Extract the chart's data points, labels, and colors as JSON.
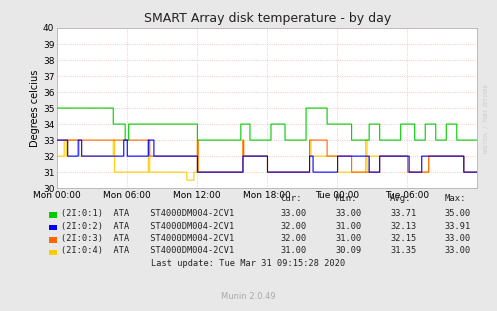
{
  "title": "SMART Array disk temperature - by day",
  "ylabel": "Degrees celcius",
  "ylim": [
    30,
    40
  ],
  "yticks": [
    30,
    31,
    32,
    33,
    34,
    35,
    36,
    37,
    38,
    39,
    40
  ],
  "xtick_labels": [
    "Mon 00:00",
    "Mon 06:00",
    "Mon 12:00",
    "Mon 18:00",
    "Tue 00:00",
    "Tue 06:00"
  ],
  "bg_color": "#e8e8e8",
  "plot_bg_color": "#ffffff",
  "grid_color": "#ffb0b0",
  "watermark": "RRDTOOL / TOBI OETIKER",
  "legend": [
    {
      "label": "(2I:0:1)  ATA    ST4000DM004-2CV1",
      "color": "#00cc00",
      "cur": "33.00",
      "min": "33.00",
      "avg": "33.71",
      "max": "35.00"
    },
    {
      "label": "(2I:0:2)  ATA    ST4000DM004-2CV1",
      "color": "#0000ff",
      "cur": "32.00",
      "min": "31.00",
      "avg": "32.13",
      "max": "33.91"
    },
    {
      "label": "(2I:0:3)  ATA    ST4000DM004-2CV1",
      "color": "#ff6600",
      "cur": "32.00",
      "min": "31.00",
      "avg": "32.15",
      "max": "33.00"
    },
    {
      "label": "(2I:0:4)  ATA    ST4000DM004-2CV1",
      "color": "#ffcc00",
      "cur": "31.00",
      "min": "30.09",
      "avg": "31.35",
      "max": "33.00"
    }
  ],
  "last_update": "Last update: Tue Mar 31 09:15:28 2020",
  "muninver": "Munin 2.0.49",
  "n_points": 600
}
